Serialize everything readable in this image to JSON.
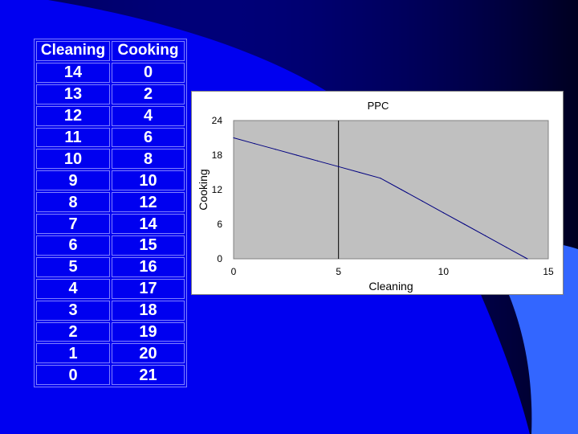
{
  "table": {
    "headers": [
      "Cleaning",
      "Cooking"
    ],
    "rows": [
      [
        "14",
        "0"
      ],
      [
        "13",
        "2"
      ],
      [
        "12",
        "4"
      ],
      [
        "11",
        "6"
      ],
      [
        "10",
        "8"
      ],
      [
        "9",
        "10"
      ],
      [
        "8",
        "12"
      ],
      [
        "7",
        "14"
      ],
      [
        "6",
        "15"
      ],
      [
        "5",
        "16"
      ],
      [
        "4",
        "17"
      ],
      [
        "3",
        "18"
      ],
      [
        "2",
        "19"
      ],
      [
        "1",
        "20"
      ],
      [
        "0",
        "21"
      ]
    ]
  },
  "colors": {
    "background": "#0000f0",
    "plot_area": "#c0c0c0",
    "line": "#000080",
    "text": "#ffffff"
  },
  "chart_data": {
    "type": "line",
    "title": "PPC",
    "xlabel": "Cleaning",
    "ylabel": "Cooking",
    "xlim": [
      0,
      15
    ],
    "ylim": [
      0,
      24
    ],
    "xticks": [
      0,
      5,
      10,
      15
    ],
    "yticks": [
      0,
      6,
      12,
      18,
      24
    ],
    "grid": false,
    "vertical_reference_x": 5,
    "series": [
      {
        "x": [
          0,
          1,
          2,
          3,
          4,
          5,
          6,
          7,
          8,
          9,
          10,
          11,
          12,
          13,
          14
        ],
        "y": [
          21,
          20,
          19,
          18,
          17,
          16,
          15,
          14,
          12,
          10,
          8,
          6,
          4,
          2,
          0
        ]
      }
    ]
  }
}
